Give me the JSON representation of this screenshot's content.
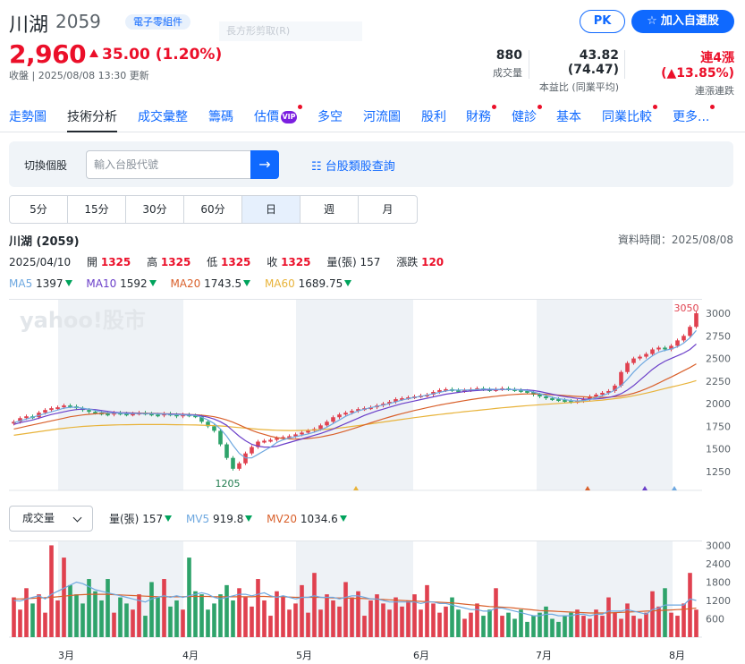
{
  "stock": {
    "name": "川湖",
    "code": "2059",
    "category": "電子零組件",
    "price": "2,960",
    "change": "35.00 (1.20%)",
    "closed_text": "收盤 | 2025/08/08 13:30 更新",
    "ghost_text": "長方形剪取(R)"
  },
  "actions": {
    "pk": "PK",
    "watchlist": "加入自選股",
    "watch_icon": "star-icon"
  },
  "stats": [
    {
      "value": "880",
      "label": "成交量"
    },
    {
      "value": "43.82 (74.47)",
      "label": "本益比 (同業平均)"
    },
    {
      "value": "連4漲 (▲13.85%)",
      "label": "連漲連跌"
    }
  ],
  "nav": [
    {
      "label": "走勢圖",
      "dot": false
    },
    {
      "label": "技術分析",
      "dot": false,
      "active": true
    },
    {
      "label": "成交彙整",
      "dot": false
    },
    {
      "label": "籌碼",
      "dot": false
    },
    {
      "label": "估價",
      "dot": true,
      "vip": "VIP"
    },
    {
      "label": "多空",
      "dot": false
    },
    {
      "label": "河流圖",
      "dot": false
    },
    {
      "label": "股利",
      "dot": false
    },
    {
      "label": "財務",
      "dot": true
    },
    {
      "label": "健診",
      "dot": true
    },
    {
      "label": "基本",
      "dot": false
    },
    {
      "label": "同業比較",
      "dot": true
    },
    {
      "label": "更多...",
      "dot": true
    }
  ],
  "switcher": {
    "label": "切換個股",
    "placeholder": "輸入台股代號",
    "go_icon": "arrow-right-icon",
    "link": "台股類股查詢"
  },
  "periods": [
    "5分",
    "15分",
    "30分",
    "60分",
    "日",
    "週",
    "月"
  ],
  "active_period": "日",
  "chart_header": {
    "title": "川湖 (2059)",
    "data_time": "資料時間：2025/08/08",
    "date": "2025/04/10",
    "open_label": "開",
    "open": "1325",
    "high_label": "高",
    "high": "1325",
    "low_label": "低",
    "low": "1325",
    "close_label": "收",
    "close": "1325",
    "vol_label": "量(張)",
    "vol": "157",
    "chg_label": "漲跌",
    "chg": "120"
  },
  "ma_legend": [
    {
      "label": "MA5",
      "value": "1397",
      "color": "#6ea8e0"
    },
    {
      "label": "MA10",
      "value": "1592",
      "color": "#6b3fc9"
    },
    {
      "label": "MA20",
      "value": "1743.5",
      "color": "#d9602b"
    },
    {
      "label": "MA60",
      "value": "1689.75",
      "color": "#e8b33a"
    }
  ],
  "vol_selector": "成交量",
  "vol_legend": [
    {
      "label": "量(張)",
      "value": "157",
      "color": "#232a31"
    },
    {
      "label": "MV5",
      "value": "919.8",
      "color": "#6ea8e0"
    },
    {
      "label": "MV20",
      "value": "1034.6",
      "color": "#d9602b"
    }
  ],
  "watermark": "yahoo!股市",
  "colors": {
    "up": "#e0414f",
    "down": "#2ea36a",
    "accent": "#0f69ff",
    "band": "#eef2f6"
  },
  "chart_data": [
    {
      "type": "candlestick",
      "title": "",
      "y_ticks": [
        1250,
        1500,
        1750,
        2000,
        2250,
        2500,
        2750,
        3000
      ],
      "ylim": [
        1100,
        3080
      ],
      "x_ticks": [
        "3月",
        "4月",
        "5月",
        "6月",
        "7月",
        "8月"
      ],
      "annotations": {
        "max": "3050",
        "min": "1205"
      },
      "closes": [
        1800,
        1840,
        1860,
        1850,
        1900,
        1930,
        1950,
        1960,
        1980,
        1970,
        1950,
        1930,
        1910,
        1900,
        1890,
        1880,
        1900,
        1890,
        1880,
        1890,
        1900,
        1890,
        1880,
        1870,
        1890,
        1880,
        1860,
        1880,
        1870,
        1860,
        1800,
        1750,
        1700,
        1550,
        1400,
        1280,
        1340,
        1450,
        1520,
        1580,
        1590,
        1600,
        1620,
        1630,
        1640,
        1660,
        1680,
        1700,
        1720,
        1760,
        1800,
        1850,
        1880,
        1900,
        1920,
        1940,
        1950,
        1960,
        1980,
        2000,
        2020,
        2050,
        2060,
        2070,
        2080,
        2090,
        2100,
        2130,
        2150,
        2160,
        2150,
        2140,
        2150,
        2160,
        2170,
        2160,
        2150,
        2160,
        2170,
        2160,
        2150,
        2140,
        2130,
        2100,
        2080,
        2060,
        2050,
        2040,
        2030,
        2020,
        2030,
        2050,
        2080,
        2100,
        2120,
        2140,
        2200,
        2350,
        2450,
        2500,
        2520,
        2550,
        2600,
        2620,
        2600,
        2640,
        2700,
        2750,
        2850,
        3000
      ],
      "ma5": [
        1790,
        1810,
        1830,
        1850,
        1870,
        1890,
        1910,
        1930,
        1950,
        1960,
        1960,
        1950,
        1940,
        1925,
        1910,
        1900,
        1895,
        1895,
        1890,
        1890,
        1890,
        1890,
        1890,
        1885,
        1885,
        1880,
        1878,
        1875,
        1872,
        1870,
        1850,
        1820,
        1780,
        1720,
        1640,
        1540,
        1450,
        1400,
        1400,
        1440,
        1480,
        1520,
        1570,
        1600,
        1620,
        1635,
        1650,
        1665,
        1685,
        1710,
        1740,
        1780,
        1820,
        1860,
        1890,
        1920,
        1940,
        1955,
        1970,
        1985,
        2000,
        2020,
        2040,
        2055,
        2070,
        2080,
        2095,
        2110,
        2125,
        2140,
        2150,
        2150,
        2150,
        2152,
        2155,
        2160,
        2160,
        2158,
        2158,
        2158,
        2155,
        2150,
        2145,
        2130,
        2110,
        2090,
        2070,
        2055,
        2045,
        2035,
        2030,
        2035,
        2045,
        2065,
        2090,
        2115,
        2150,
        2200,
        2270,
        2350,
        2420,
        2480,
        2530,
        2570,
        2590,
        2605,
        2630,
        2670,
        2730,
        2810
      ],
      "ma10": [
        1770,
        1790,
        1805,
        1820,
        1840,
        1860,
        1880,
        1895,
        1910,
        1925,
        1935,
        1940,
        1940,
        1935,
        1925,
        1915,
        1905,
        1900,
        1898,
        1895,
        1893,
        1890,
        1890,
        1888,
        1887,
        1885,
        1883,
        1880,
        1878,
        1875,
        1865,
        1850,
        1830,
        1800,
        1760,
        1700,
        1640,
        1590,
        1550,
        1530,
        1520,
        1520,
        1530,
        1550,
        1570,
        1590,
        1610,
        1630,
        1650,
        1670,
        1695,
        1720,
        1750,
        1780,
        1810,
        1840,
        1870,
        1895,
        1920,
        1940,
        1960,
        1980,
        2000,
        2015,
        2030,
        2045,
        2060,
        2075,
        2090,
        2105,
        2115,
        2125,
        2135,
        2140,
        2145,
        2150,
        2152,
        2154,
        2155,
        2156,
        2156,
        2154,
        2152,
        2145,
        2135,
        2120,
        2105,
        2090,
        2078,
        2068,
        2058,
        2052,
        2050,
        2052,
        2058,
        2068,
        2085,
        2110,
        2150,
        2200,
        2260,
        2320,
        2380,
        2430,
        2470,
        2500,
        2530,
        2560,
        2600,
        2660
      ],
      "ma20": [
        1720,
        1735,
        1750,
        1765,
        1780,
        1795,
        1810,
        1825,
        1840,
        1855,
        1865,
        1875,
        1882,
        1888,
        1892,
        1895,
        1897,
        1898,
        1898,
        1897,
        1896,
        1895,
        1893,
        1891,
        1889,
        1887,
        1885,
        1882,
        1880,
        1877,
        1872,
        1865,
        1855,
        1840,
        1820,
        1795,
        1765,
        1735,
        1705,
        1680,
        1660,
        1640,
        1625,
        1615,
        1610,
        1608,
        1610,
        1615,
        1622,
        1632,
        1645,
        1660,
        1678,
        1698,
        1720,
        1742,
        1765,
        1788,
        1810,
        1832,
        1852,
        1872,
        1890,
        1908,
        1925,
        1940,
        1955,
        1970,
        1985,
        1998,
        2010,
        2022,
        2034,
        2045,
        2055,
        2065,
        2074,
        2082,
        2090,
        2097,
        2102,
        2106,
        2108,
        2108,
        2106,
        2103,
        2099,
        2095,
        2090,
        2085,
        2080,
        2076,
        2072,
        2070,
        2070,
        2072,
        2077,
        2085,
        2098,
        2115,
        2138,
        2165,
        2195,
        2228,
        2262,
        2295,
        2330,
        2365,
        2400,
        2440
      ],
      "ma60": [
        1650,
        1660,
        1670,
        1680,
        1690,
        1700,
        1710,
        1720,
        1728,
        1736,
        1742,
        1748,
        1752,
        1756,
        1759,
        1762,
        1764,
        1766,
        1767,
        1768,
        1769,
        1769,
        1769,
        1769,
        1769,
        1768,
        1767,
        1766,
        1765,
        1764,
        1762,
        1760,
        1757,
        1753,
        1748,
        1742,
        1736,
        1730,
        1724,
        1718,
        1713,
        1709,
        1706,
        1704,
        1703,
        1703,
        1704,
        1706,
        1709,
        1713,
        1718,
        1724,
        1731,
        1739,
        1748,
        1757,
        1767,
        1777,
        1787,
        1797,
        1807,
        1817,
        1827,
        1836,
        1845,
        1854,
        1863,
        1872,
        1880,
        1888,
        1896,
        1904,
        1912,
        1919,
        1926,
        1933,
        1940,
        1947,
        1954,
        1960,
        1966,
        1972,
        1978,
        1983,
        1988,
        1993,
        1998,
        2003,
        2008,
        2013,
        2018,
        2023,
        2028,
        2034,
        2040,
        2047,
        2055,
        2064,
        2075,
        2088,
        2102,
        2117,
        2133,
        2150,
        2167,
        2184,
        2200,
        2217,
        2235,
        2255
      ]
    },
    {
      "type": "bar",
      "title": "",
      "y_ticks": [
        600,
        1200,
        1800,
        2400,
        3000
      ],
      "ylim": [
        0,
        3100
      ],
      "volumes": [
        1300,
        900,
        1600,
        1100,
        1400,
        800,
        3000,
        1200,
        2600,
        1700,
        1400,
        1100,
        1900,
        1500,
        1200,
        1900,
        800,
        1300,
        1100,
        900,
        1400,
        700,
        1800,
        1300,
        1900,
        1000,
        1200,
        900,
        2600,
        1500,
        1400,
        900,
        1100,
        1400,
        1700,
        1200,
        1600,
        1300,
        1000,
        1900,
        1200,
        700,
        1500,
        1300,
        900,
        1100,
        1700,
        800,
        2100,
        900,
        1400,
        1200,
        1000,
        1800,
        1300,
        1500,
        700,
        1200,
        1400,
        1100,
        900,
        1300,
        1000,
        1200,
        1400,
        900,
        1700,
        1100,
        800,
        1000,
        1300,
        900,
        600,
        800,
        1100,
        700,
        900,
        1600,
        700,
        800,
        600,
        900,
        500,
        700,
        800,
        1000,
        600,
        500,
        700,
        800,
        900,
        700,
        600,
        900,
        700,
        1300,
        800,
        600,
        1100,
        700,
        600,
        800,
        1500,
        1000,
        1600,
        800,
        700,
        1100,
        2100,
        900
      ],
      "mv5": [
        1200,
        1180,
        1250,
        1300,
        1350,
        1250,
        1400,
        1500,
        1600,
        1700,
        1800,
        1750,
        1650,
        1550,
        1500,
        1450,
        1400,
        1350,
        1300,
        1250,
        1200,
        1150,
        1250,
        1300,
        1350,
        1300,
        1350,
        1300,
        1350,
        1400,
        1450,
        1400,
        1300,
        1250,
        1300,
        1350,
        1400,
        1400,
        1350,
        1400,
        1450,
        1350,
        1300,
        1350,
        1300,
        1250,
        1300,
        1300,
        1350,
        1300,
        1300,
        1300,
        1250,
        1300,
        1350,
        1350,
        1300,
        1250,
        1250,
        1200,
        1150,
        1150,
        1150,
        1150,
        1150,
        1100,
        1150,
        1150,
        1100,
        1100,
        1050,
        1000,
        950,
        900,
        900,
        850,
        850,
        950,
        950,
        900,
        850,
        800,
        750,
        700,
        700,
        750,
        750,
        700,
        700,
        700,
        750,
        750,
        700,
        750,
        750,
        850,
        850,
        850,
        900,
        850,
        800,
        750,
        900,
        950,
        1050,
        1050,
        1050,
        1050,
        1250,
        1200
      ],
      "mv20": [
        1250,
        1250,
        1260,
        1270,
        1280,
        1290,
        1300,
        1320,
        1340,
        1360,
        1380,
        1390,
        1400,
        1400,
        1400,
        1400,
        1390,
        1380,
        1370,
        1360,
        1350,
        1340,
        1330,
        1320,
        1320,
        1320,
        1320,
        1320,
        1330,
        1330,
        1330,
        1330,
        1320,
        1320,
        1320,
        1320,
        1320,
        1320,
        1320,
        1330,
        1330,
        1320,
        1320,
        1320,
        1310,
        1300,
        1300,
        1300,
        1300,
        1300,
        1290,
        1280,
        1280,
        1280,
        1270,
        1270,
        1260,
        1250,
        1240,
        1230,
        1220,
        1210,
        1200,
        1190,
        1180,
        1170,
        1160,
        1150,
        1140,
        1130,
        1120,
        1100,
        1080,
        1060,
        1040,
        1020,
        1000,
        990,
        980,
        970,
        950,
        930,
        910,
        890,
        870,
        860,
        850,
        840,
        830,
        820,
        810,
        800,
        790,
        790,
        790,
        790,
        800,
        810,
        820,
        830,
        840,
        850,
        860,
        870,
        880,
        890,
        900,
        910,
        930,
        950
      ]
    }
  ]
}
